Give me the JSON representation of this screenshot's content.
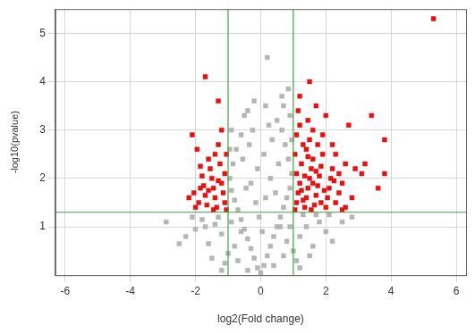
{
  "chart_data": {
    "type": "scatter",
    "x_label": "log2(Fold change)",
    "y_label": "-log10(pvalue)",
    "xlim": [
      -6.3,
      6.3
    ],
    "xticks": [
      -6,
      -4,
      -2,
      0,
      2,
      4,
      6
    ],
    "ylim": [
      0,
      5.5
    ],
    "yticks": [
      1,
      2,
      3,
      4,
      5
    ],
    "grid": true,
    "threshold_lines": {
      "x": [
        -1,
        1
      ],
      "y": [
        1.3
      ],
      "color": "#3fa33f"
    },
    "series": [
      {
        "color": "#b5b5b5",
        "marker": "square",
        "x": [
          0,
          0.1,
          -0.1,
          0.2,
          -0.2,
          0.3,
          -0.3,
          0.4,
          -0.4,
          0.5,
          -0.5,
          0.6,
          -0.6,
          0.7,
          -0.7,
          0.8,
          -0.8,
          0.9,
          -0.9,
          0.95,
          -0.95,
          0.85,
          -0.85,
          0.75,
          -0.75,
          0.65,
          -0.6,
          0.5,
          -0.5,
          0.7,
          -0.4,
          0.85,
          0.2,
          0.1,
          -0.1,
          0.3,
          -0.3,
          0.15,
          -0.15,
          0.45,
          -0.45,
          0.55,
          -0.55,
          0.35,
          -0.35,
          0.25,
          -0.25,
          0.6,
          -0.6,
          0.8,
          -0.8,
          1.0,
          -1.0,
          1.2,
          -1.2,
          1.4,
          -1.4,
          1.6,
          -1.6,
          1.8,
          -1.8,
          2.0,
          -2.0,
          2.2,
          -2.3,
          2.5,
          -2.5,
          2.8,
          -2.9,
          1.1,
          -1.1,
          1.3,
          -1.3,
          1.5,
          -1.5,
          0.9,
          -0.9,
          1.7,
          -1.7,
          2.1,
          -2.1,
          0.05,
          -0.05,
          0.15,
          -0.2,
          0.65,
          0.9,
          -0.9,
          0.95,
          -0.95,
          0.4,
          -0.4,
          0.7,
          -0.7,
          1.2,
          -1.2
        ],
        "values": [
          0.05,
          0.2,
          0.15,
          0.4,
          0.35,
          0.6,
          0.55,
          0.8,
          0.75,
          1.0,
          0.95,
          1.2,
          1.15,
          1.4,
          1.35,
          1.6,
          1.55,
          1.8,
          1.75,
          2.1,
          2.0,
          2.4,
          2.3,
          2.7,
          2.6,
          3.0,
          2.9,
          3.2,
          3.3,
          3.5,
          3.4,
          3.85,
          4.5,
          2.5,
          2.2,
          2.0,
          1.9,
          1.6,
          1.5,
          1.7,
          1.8,
          2.3,
          2.4,
          2.8,
          2.7,
          3.1,
          3.0,
          1.0,
          0.9,
          0.7,
          0.6,
          0.5,
          0.45,
          0.8,
          0.85,
          1.0,
          1.05,
          0.6,
          0.65,
          1.1,
          1.15,
          0.9,
          0.95,
          0.7,
          0.8,
          1.1,
          0.65,
          1.2,
          1.1,
          0.3,
          0.25,
          1.25,
          1.2,
          0.4,
          0.35,
          1.0,
          1.1,
          1.25,
          1.0,
          1.25,
          1.2,
          0.9,
          1.2,
          3.5,
          3.6,
          3.7,
          3.3,
          3.0,
          2.8,
          2.6,
          0.2,
          0.1,
          0.4,
          0.3,
          0.15,
          0.1
        ]
      },
      {
        "color": "#e01414",
        "marker": "square",
        "x": [
          1.05,
          1.1,
          1.15,
          1.2,
          1.1,
          1.25,
          1.05,
          1.3,
          1.1,
          1.2,
          1.15,
          1.2,
          1.5,
          1.35,
          1.4,
          1.45,
          1.5,
          1.55,
          1.6,
          1.4,
          1.5,
          1.6,
          1.45,
          1.7,
          1.65,
          1.7,
          1.75,
          1.8,
          1.85,
          1.9,
          1.75,
          2.0,
          1.9,
          2.0,
          2.05,
          2.1,
          2.15,
          2.2,
          2.3,
          2.2,
          2.3,
          2.4,
          2.5,
          2.6,
          2.4,
          2.7,
          2.9,
          3.1,
          3.2,
          3.4,
          3.6,
          3.8,
          3.8,
          5.3,
          2.6,
          2.8,
          2.5,
          1.3,
          1.6,
          1.25,
          1.95,
          1.55,
          1.85,
          2.25,
          1.35,
          1.7,
          1.45,
          -1.05,
          -1.1,
          -1.15,
          -1.2,
          -1.1,
          -1.25,
          -1.05,
          -1.3,
          -1.2,
          -1.3,
          -1.7,
          -1.35,
          -1.4,
          -1.45,
          -1.5,
          -1.55,
          -1.6,
          -1.4,
          -1.65,
          -1.7,
          -1.75,
          -1.8,
          -1.85,
          -1.9,
          -2.0,
          -2.05,
          -2.1,
          -1.95,
          -2.2,
          -1.3,
          -1.6,
          -1.45,
          -1.85
        ],
        "values": [
          1.35,
          1.5,
          1.7,
          1.9,
          2.1,
          2.3,
          2.5,
          2.7,
          2.9,
          3.1,
          3.4,
          3.7,
          4.0,
          1.4,
          1.6,
          1.8,
          2.0,
          2.2,
          2.4,
          2.6,
          2.8,
          3.0,
          3.2,
          3.5,
          1.45,
          1.65,
          1.85,
          2.05,
          2.25,
          2.5,
          2.7,
          3.3,
          2.9,
          1.4,
          1.6,
          1.8,
          2.0,
          2.2,
          2.5,
          2.7,
          1.5,
          1.7,
          1.9,
          2.3,
          2.1,
          3.1,
          2.2,
          2.1,
          2.3,
          3.3,
          1.8,
          2.1,
          2.8,
          5.3,
          1.4,
          1.6,
          1.35,
          1.55,
          1.9,
          1.75,
          1.75,
          1.35,
          1.5,
          1.95,
          2.05,
          2.15,
          2.45,
          1.35,
          1.5,
          1.7,
          1.9,
          2.1,
          2.3,
          2.5,
          2.7,
          3.0,
          3.6,
          4.1,
          1.4,
          1.6,
          1.8,
          2.0,
          2.2,
          2.4,
          2.5,
          1.45,
          1.65,
          1.85,
          2.05,
          2.25,
          1.5,
          1.4,
          1.7,
          2.9,
          2.6,
          1.6,
          1.95,
          1.75,
          1.35,
          1.8
        ]
      }
    ]
  }
}
